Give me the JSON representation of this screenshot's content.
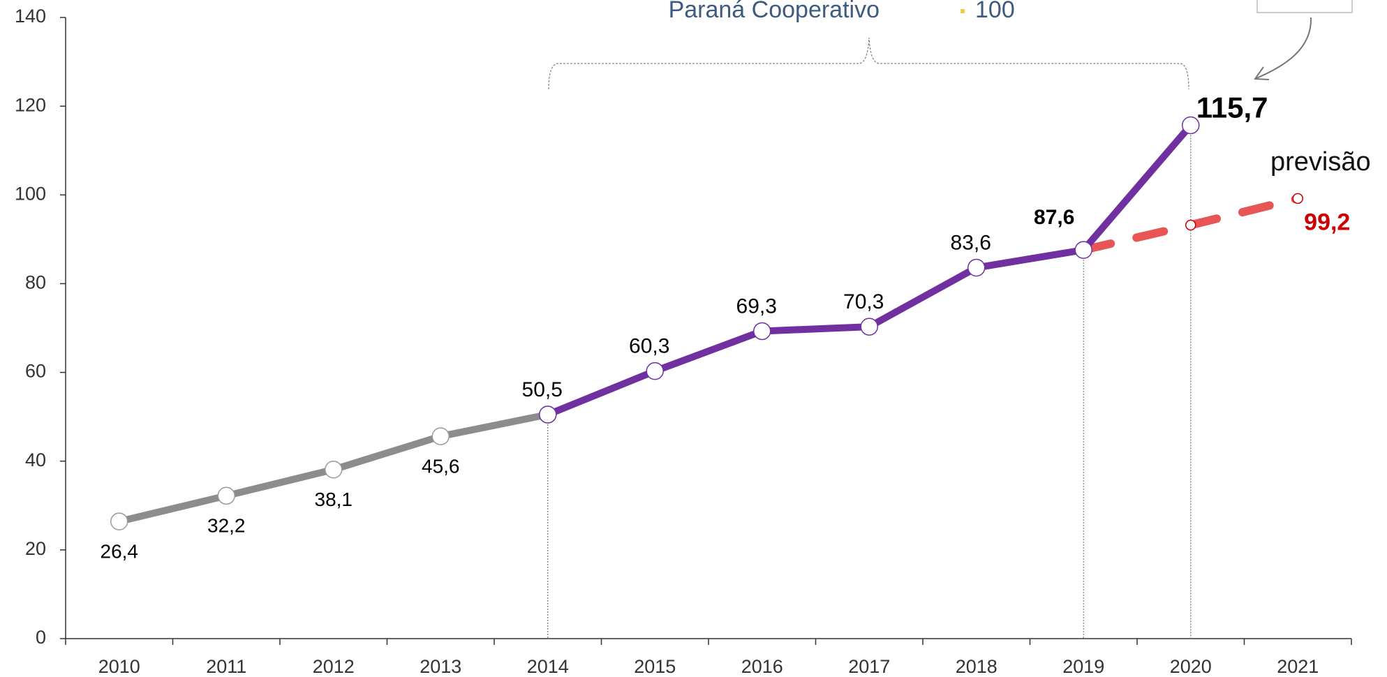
{
  "chart_data": {
    "type": "line",
    "annotations": [
      "Paraná Cooperativo",
      "100"
    ],
    "x": [
      "2010",
      "2011",
      "2012",
      "2013",
      "2014",
      "2015",
      "2016",
      "2017",
      "2018",
      "2019",
      "2020",
      "2021"
    ],
    "ylim": [
      0,
      140
    ],
    "yticks": [
      0,
      20,
      40,
      60,
      80,
      100,
      120,
      140
    ],
    "grid": false,
    "series": [
      {
        "color": "#8c8c8c",
        "dashed": false,
        "values": [
          26.4,
          32.2,
          38.1,
          45.6,
          50.5,
          null,
          null,
          null,
          null,
          null,
          null,
          null
        ],
        "value_labels": [
          "26,4",
          "32,2",
          "38,1",
          "45,6",
          null,
          null,
          null,
          null,
          null,
          null,
          null,
          null
        ]
      },
      {
        "color": "#7030a0",
        "dashed": false,
        "values": [
          null,
          null,
          null,
          null,
          50.5,
          60.3,
          69.3,
          70.3,
          83.6,
          87.6,
          115.7,
          null
        ],
        "value_labels": [
          null,
          null,
          null,
          null,
          "50,5",
          "60,3",
          "69,3",
          "70,3",
          "83,6",
          "87,6",
          "115,7",
          null
        ]
      },
      {
        "name": "previsão",
        "color": "#e85555",
        "dashed": true,
        "values": [
          null,
          null,
          null,
          null,
          null,
          null,
          null,
          null,
          null,
          87.6,
          93.2,
          99.2
        ],
        "value_labels": [
          null,
          null,
          null,
          null,
          null,
          null,
          null,
          null,
          null,
          null,
          null,
          "99,2"
        ]
      }
    ]
  }
}
